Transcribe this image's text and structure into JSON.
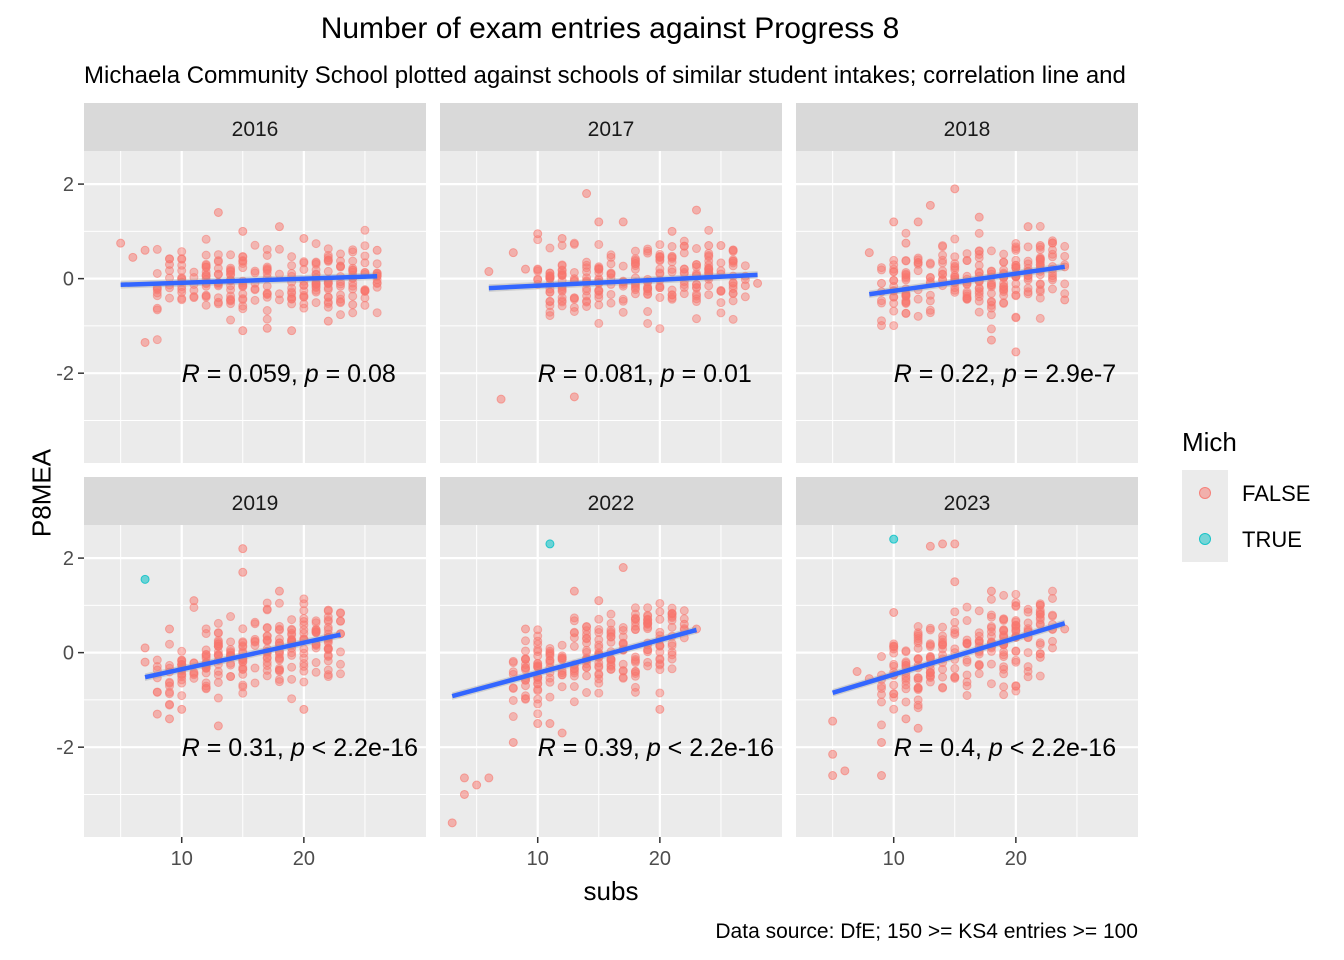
{
  "chart_data": {
    "type": "scatter",
    "title": "Number of exam entries against Progress 8",
    "subtitle": "Michaela Community School plotted against schools of similar student intakes; correlation line and",
    "xlabel": "subs",
    "ylabel": "P8MEA",
    "caption": "Data source: DfE; 150 >= KS4 entries >= 100",
    "xlim": [
      2,
      30
    ],
    "ylim": [
      -3.9,
      2.7
    ],
    "x_ticks": [
      10,
      20
    ],
    "y_ticks": [
      -2,
      0,
      2
    ],
    "legend": {
      "title": "Mich",
      "position": "right",
      "entries": [
        {
          "label": "FALSE",
          "color": "#f8766d"
        },
        {
          "label": "TRUE",
          "color": "#00bfc4"
        }
      ]
    },
    "trend_color": "#3366ff",
    "panels": [
      {
        "label": "2016",
        "annotation": {
          "r_text": " = 0.059, ",
          "p_text": " = 0.08"
        },
        "trend": {
          "x": [
            5,
            26
          ],
          "y": [
            -0.13,
            0.05
          ]
        },
        "highlight": [],
        "points": [
          [
            5,
            0.75
          ],
          [
            6,
            0.45
          ],
          [
            7,
            0.6
          ],
          [
            7,
            -1.35
          ],
          [
            9,
            0.3
          ],
          [
            11,
            -0.4
          ],
          [
            12,
            0.25
          ],
          [
            13,
            1.4
          ],
          [
            13,
            -0.5
          ],
          [
            15,
            1.0
          ],
          [
            15,
            -1.1
          ],
          [
            17,
            -1.05
          ],
          [
            18,
            1.1
          ],
          [
            19,
            -1.1
          ],
          [
            20,
            0.85
          ],
          [
            22,
            -0.9
          ],
          [
            24,
            -0.55
          ],
          [
            26,
            0.6
          ],
          [
            26,
            0.05
          ]
        ],
        "cloud": {
          "x": [
            8,
            26
          ],
          "center": 0.0,
          "spread": 0.62,
          "n": 240
        }
      },
      {
        "label": "2017",
        "annotation": {
          "r_text": " = 0.081, ",
          "p_text": " = 0.01"
        },
        "trend": {
          "x": [
            6,
            28
          ],
          "y": [
            -0.2,
            0.08
          ]
        },
        "highlight": [],
        "points": [
          [
            6,
            0.15
          ],
          [
            7,
            -2.55
          ],
          [
            8,
            0.55
          ],
          [
            9,
            0.2
          ],
          [
            10,
            0.95
          ],
          [
            12,
            0.85
          ],
          [
            13,
            -2.5
          ],
          [
            14,
            1.8
          ],
          [
            15,
            1.2
          ],
          [
            17,
            1.2
          ],
          [
            21,
            1.0
          ],
          [
            23,
            1.45
          ],
          [
            24,
            0.7
          ],
          [
            25,
            0.7
          ],
          [
            26,
            0.6
          ],
          [
            27,
            -0.15
          ],
          [
            28,
            -0.1
          ]
        ],
        "cloud": {
          "x": [
            10,
            27
          ],
          "center": 0.0,
          "spread": 0.65,
          "n": 240
        }
      },
      {
        "label": "2018",
        "annotation": {
          "r_text": " = 0.22, ",
          "p_text": " = 2.9e-7"
        },
        "trend": {
          "x": [
            8,
            24
          ],
          "y": [
            -0.33,
            0.25
          ]
        },
        "highlight": [],
        "points": [
          [
            8,
            0.55
          ],
          [
            9,
            -0.1
          ],
          [
            10,
            1.2
          ],
          [
            11,
            0.75
          ],
          [
            12,
            1.2
          ],
          [
            13,
            1.55
          ],
          [
            15,
            1.9
          ],
          [
            17,
            1.3
          ],
          [
            18,
            -1.3
          ],
          [
            20,
            -1.55
          ],
          [
            21,
            1.1
          ],
          [
            22,
            0.7
          ],
          [
            23,
            0.75
          ],
          [
            24,
            -0.45
          ],
          [
            24,
            0.25
          ]
        ],
        "cloud": {
          "x": [
            9,
            24
          ],
          "center": 0.0,
          "spread": 0.7,
          "n": 230
        }
      },
      {
        "label": "2019",
        "annotation": {
          "r_text": " = 0.31, ",
          "p_text": " < 2.2e-16"
        },
        "trend": {
          "x": [
            7,
            23
          ],
          "y": [
            -0.52,
            0.38
          ]
        },
        "highlight": [
          [
            7,
            1.55
          ]
        ],
        "points": [
          [
            7,
            -0.2
          ],
          [
            7,
            0.1
          ],
          [
            8,
            -1.3
          ],
          [
            9,
            0.5
          ],
          [
            9,
            -1.4
          ],
          [
            10,
            -1.2
          ],
          [
            11,
            1.1
          ],
          [
            13,
            -1.55
          ],
          [
            15,
            2.2
          ],
          [
            15,
            1.7
          ],
          [
            18,
            1.3
          ],
          [
            20,
            -1.2
          ],
          [
            22,
            0.9
          ],
          [
            23,
            0.4
          ]
        ],
        "cloud": {
          "x": [
            8,
            23
          ],
          "center": 0.0,
          "spread": 0.72,
          "n": 240
        }
      },
      {
        "label": "2022",
        "annotation": {
          "r_text": " = 0.39, ",
          "p_text": " < 2.2e-16"
        },
        "trend": {
          "x": [
            3,
            23
          ],
          "y": [
            -0.92,
            0.48
          ]
        },
        "highlight": [
          [
            11,
            2.3
          ]
        ],
        "points": [
          [
            3,
            -3.6
          ],
          [
            4,
            -3.0
          ],
          [
            4,
            -2.65
          ],
          [
            5,
            -2.8
          ],
          [
            6,
            -2.65
          ],
          [
            8,
            -1.9
          ],
          [
            9,
            0.5
          ],
          [
            10,
            -1.5
          ],
          [
            11,
            -1.5
          ],
          [
            12,
            -1.7
          ],
          [
            13,
            1.3
          ],
          [
            15,
            1.1
          ],
          [
            17,
            1.8
          ],
          [
            20,
            -1.2
          ],
          [
            22,
            0.6
          ],
          [
            23,
            0.5
          ]
        ],
        "cloud": {
          "x": [
            8,
            22
          ],
          "center": 0.0,
          "spread": 0.78,
          "n": 230
        }
      },
      {
        "label": "2023",
        "annotation": {
          "r_text": " = 0.4, ",
          "p_text": " < 2.2e-16"
        },
        "trend": {
          "x": [
            5,
            24
          ],
          "y": [
            -0.85,
            0.62
          ]
        },
        "highlight": [
          [
            10,
            2.4
          ]
        ],
        "points": [
          [
            5,
            -1.45
          ],
          [
            5,
            -2.15
          ],
          [
            5,
            -2.6
          ],
          [
            6,
            -2.5
          ],
          [
            7,
            -0.4
          ],
          [
            8,
            -0.55
          ],
          [
            9,
            -2.6
          ],
          [
            9,
            -1.9
          ],
          [
            10,
            0.85
          ],
          [
            11,
            -1.4
          ],
          [
            12,
            -1.6
          ],
          [
            13,
            2.25
          ],
          [
            14,
            2.3
          ],
          [
            15,
            2.3
          ],
          [
            15,
            1.5
          ],
          [
            18,
            1.3
          ],
          [
            20,
            -0.7
          ],
          [
            22,
            -0.1
          ],
          [
            24,
            0.5
          ]
        ],
        "cloud": {
          "x": [
            9,
            23
          ],
          "center": 0.0,
          "spread": 0.78,
          "n": 230
        }
      }
    ]
  }
}
